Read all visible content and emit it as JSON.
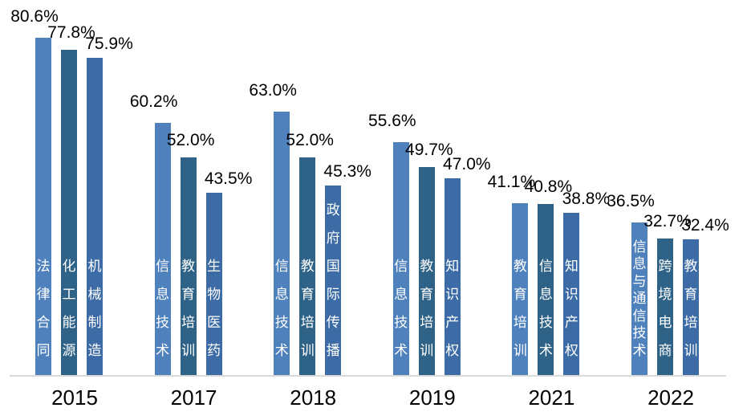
{
  "chart_data": {
    "type": "bar",
    "title": "",
    "value_format": "percent",
    "grid": false,
    "legend": false,
    "ylim": [
      0,
      90
    ],
    "colors": [
      "#4F81BD",
      "#2E6287",
      "#3C6BA5"
    ],
    "axis_line_color": "#D9D9D9",
    "data_label_color": "#000000",
    "bar_text_color": "#FFFFFF",
    "categories": [
      "2015",
      "2017",
      "2018",
      "2019",
      "2021",
      "2022"
    ],
    "groups": [
      {
        "year": "2015",
        "bars": [
          {
            "label": "法律合同",
            "value": 80.6,
            "display": "80.6%"
          },
          {
            "label": "化工能源",
            "value": 77.8,
            "display": "77.8%"
          },
          {
            "label": "机械制造",
            "value": 75.9,
            "display": "75.9%"
          }
        ]
      },
      {
        "year": "2017",
        "bars": [
          {
            "label": "信息技术",
            "value": 60.2,
            "display": "60.2%"
          },
          {
            "label": "教育培训",
            "value": 52.0,
            "display": "52.0%"
          },
          {
            "label": "生物医药",
            "value": 43.5,
            "display": "43.5%"
          }
        ]
      },
      {
        "year": "2018",
        "bars": [
          {
            "label": "信息技术",
            "value": 63.0,
            "display": "63.0%"
          },
          {
            "label": "教育培训",
            "value": 52.0,
            "display": "52.0%"
          },
          {
            "label": "政府国际传播",
            "value": 45.3,
            "display": "45.3%"
          }
        ]
      },
      {
        "year": "2019",
        "bars": [
          {
            "label": "信息技术",
            "value": 55.6,
            "display": "55.6%"
          },
          {
            "label": "教育培训",
            "value": 49.7,
            "display": "49.7%"
          },
          {
            "label": "知识产权",
            "value": 47.0,
            "display": "47.0%"
          }
        ]
      },
      {
        "year": "2021",
        "bars": [
          {
            "label": "教育培训",
            "value": 41.1,
            "display": "41.1%"
          },
          {
            "label": "信息技术",
            "value": 40.8,
            "display": "40.8%"
          },
          {
            "label": "知识产权",
            "value": 38.8,
            "display": "38.8%"
          }
        ]
      },
      {
        "year": "2022",
        "bars": [
          {
            "label": "信息与通信技术",
            "value": 36.5,
            "display": "36.5%"
          },
          {
            "label": "跨境电商",
            "value": 32.7,
            "display": "32.7%"
          },
          {
            "label": "教育培训",
            "value": 32.4,
            "display": "32.4%"
          }
        ]
      }
    ]
  }
}
